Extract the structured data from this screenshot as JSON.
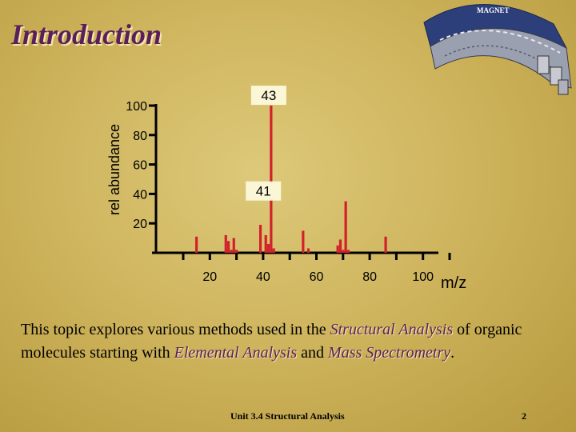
{
  "slide": {
    "title": "Introduction",
    "logo_text": "MAGNET",
    "body": {
      "t1": "This topic explores various methods used in the ",
      "h1": "Structural Analysis",
      "t2": " of organic molecules starting with ",
      "h2": "Elemental Analysis",
      "t3": " and ",
      "h3": "Mass Spectrometry",
      "t4": "."
    },
    "footer_unit": "Unit 3.4 Structural Analysis",
    "page_number": "2"
  },
  "colors": {
    "peak": "#d1212a",
    "axis": "#000000",
    "label_box": "#fbf6d6",
    "title": "#5a1f5a"
  },
  "chart_data": {
    "type": "bar",
    "title": "",
    "xlabel": "m/z",
    "ylabel": "rel abundance",
    "xlim": [
      0,
      110
    ],
    "ylim": [
      0,
      100
    ],
    "x_ticks": [
      20,
      40,
      60,
      80,
      100
    ],
    "y_ticks": [
      20,
      40,
      60,
      80,
      100
    ],
    "grid": false,
    "peaks": [
      {
        "x": 15,
        "y": 11
      },
      {
        "x": 26,
        "y": 12
      },
      {
        "x": 27,
        "y": 8
      },
      {
        "x": 28,
        "y": 2
      },
      {
        "x": 29,
        "y": 10
      },
      {
        "x": 30,
        "y": 2
      },
      {
        "x": 39,
        "y": 19
      },
      {
        "x": 41,
        "y": 12
      },
      {
        "x": 42,
        "y": 6
      },
      {
        "x": 43,
        "y": 100
      },
      {
        "x": 44,
        "y": 3
      },
      {
        "x": 55,
        "y": 15
      },
      {
        "x": 57,
        "y": 3
      },
      {
        "x": 68,
        "y": 5
      },
      {
        "x": 69,
        "y": 9
      },
      {
        "x": 70,
        "y": 2
      },
      {
        "x": 71,
        "y": 35
      },
      {
        "x": 72,
        "y": 2
      },
      {
        "x": 86,
        "y": 11
      }
    ],
    "annotations": [
      {
        "text": "43",
        "x": 43,
        "y": 107
      },
      {
        "text": "41",
        "x": 41,
        "y": 42
      }
    ]
  }
}
